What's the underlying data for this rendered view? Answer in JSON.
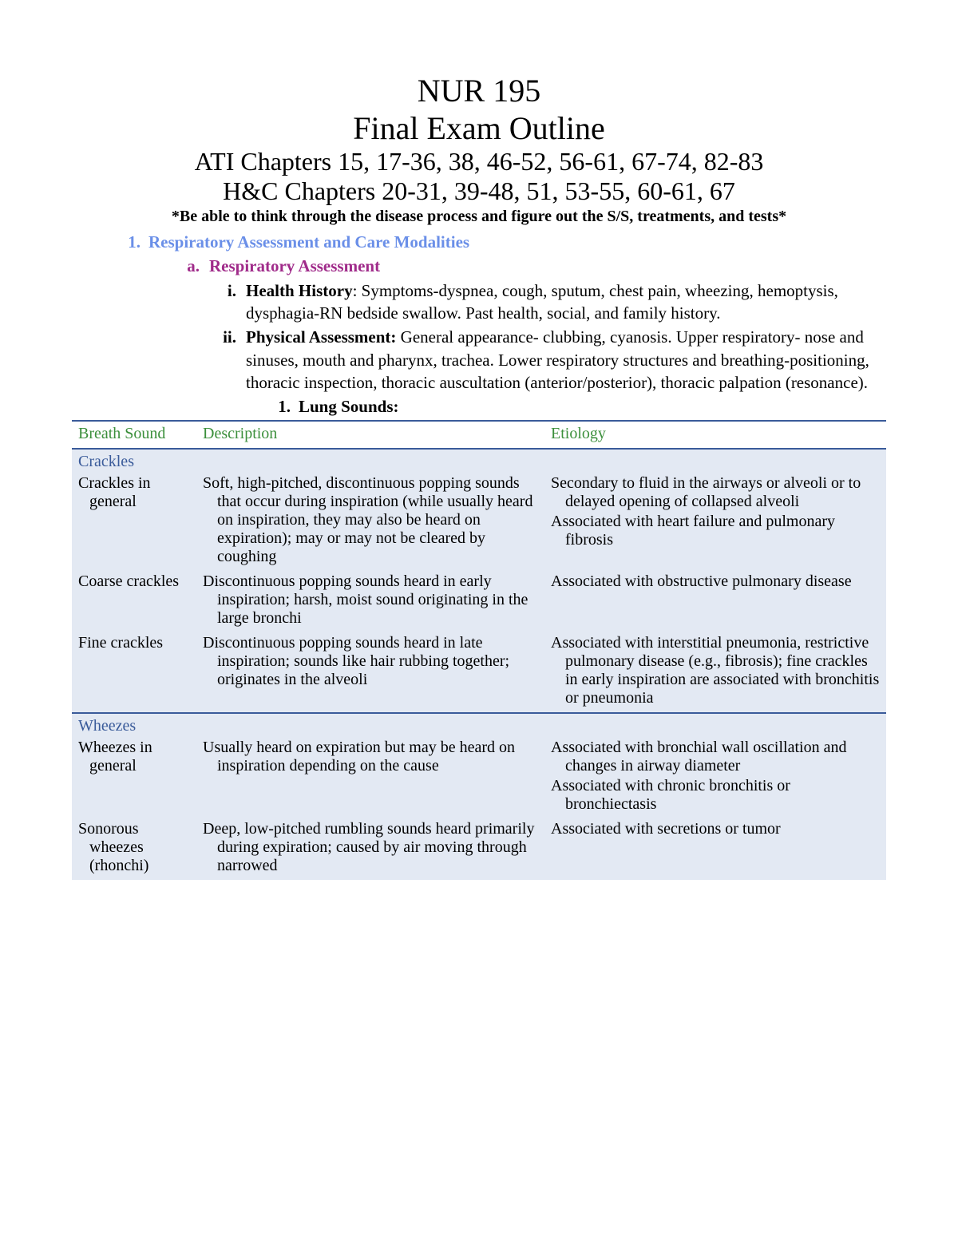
{
  "header": {
    "course_code": "NUR 195",
    "exam_title": "Final Exam Outline",
    "ati_chapters": "ATI Chapters 15, 17-36, 38, 46-52, 56-61, 67-74, 82-83",
    "hc_chapters": "H&C Chapters 20-31, 39-48, 51, 53-55, 60-61, 67",
    "note": "*Be able to think through the disease process and figure out the S/S, treatments, and tests*"
  },
  "outline": {
    "n1": "1.",
    "sec1": "Respiratory Assessment and Care Modalities",
    "a": "a.",
    "sub_a": "Respiratory Assessment",
    "i": "i.",
    "i_label": "Health History",
    "i_text": ": Symptoms-dyspnea, cough, sputum, chest pain, wheezing, hemoptysis, dysphagia-RN bedside swallow. Past health, social, and family history.",
    "ii": "ii.",
    "ii_label": "Physical Assessment:",
    "ii_text": " General appearance- clubbing, cyanosis. Upper respiratory- nose and sinuses, mouth and pharynx, trachea. Lower respiratory structures and breathing-positioning, thoracic inspection, thoracic auscultation (anterior/posterior), thoracic palpation (resonance).",
    "n1_1": "1.",
    "lung_sounds": "Lung Sounds:"
  },
  "table": {
    "headers": {
      "sound": "Breath Sound",
      "desc": "Description",
      "etio": "Etiology"
    },
    "groups": {
      "crackles": "Crackles",
      "wheezes": "Wheezes"
    },
    "rows": {
      "crackles_general": {
        "sound": "Crackles in general",
        "desc": "Soft, high-pitched, discontinuous popping sounds that occur during inspiration (while usually heard on inspiration, they may also be heard on expiration); may or may not be cleared by coughing",
        "etio1": "Secondary to fluid in the airways or alveoli or to delayed opening of collapsed alveoli",
        "etio2": "Associated with heart failure and pulmonary fibrosis"
      },
      "coarse": {
        "sound": "Coarse crackles",
        "desc": "Discontinuous popping sounds heard in early inspiration; harsh, moist sound originating in the large bronchi",
        "etio": "Associated with obstructive pulmonary disease"
      },
      "fine": {
        "sound": "Fine crackles",
        "desc": "Discontinuous popping sounds heard in late inspiration; sounds like hair rubbing together; originates in the alveoli",
        "etio": "Associated with interstitial pneumonia, restrictive pulmonary disease (e.g., fibrosis); fine crackles in early inspiration are associated with bronchitis or pneumonia"
      },
      "wheezes_general": {
        "sound": "Wheezes in general",
        "desc": "Usually heard on expiration but may be heard on inspiration depending on the cause",
        "etio1": "Associated with bronchial wall oscillation and changes in airway diameter",
        "etio2": "Associated with chronic bronchitis or bronchiectasis"
      },
      "sonorous": {
        "sound": "Sonorous wheezes (rhonchi)",
        "desc": "Deep, low-pitched rumbling sounds heard primarily during expiration; caused by air moving through narrowed",
        "etio": "Associated with secretions or tumor"
      }
    }
  },
  "colors": {
    "accent_blue": "#6a8fe8",
    "accent_purple": "#a02b8a",
    "table_header_green": "#3b8f3b",
    "table_border": "#3a5b9a",
    "table_bg": "#e3e9f3"
  }
}
